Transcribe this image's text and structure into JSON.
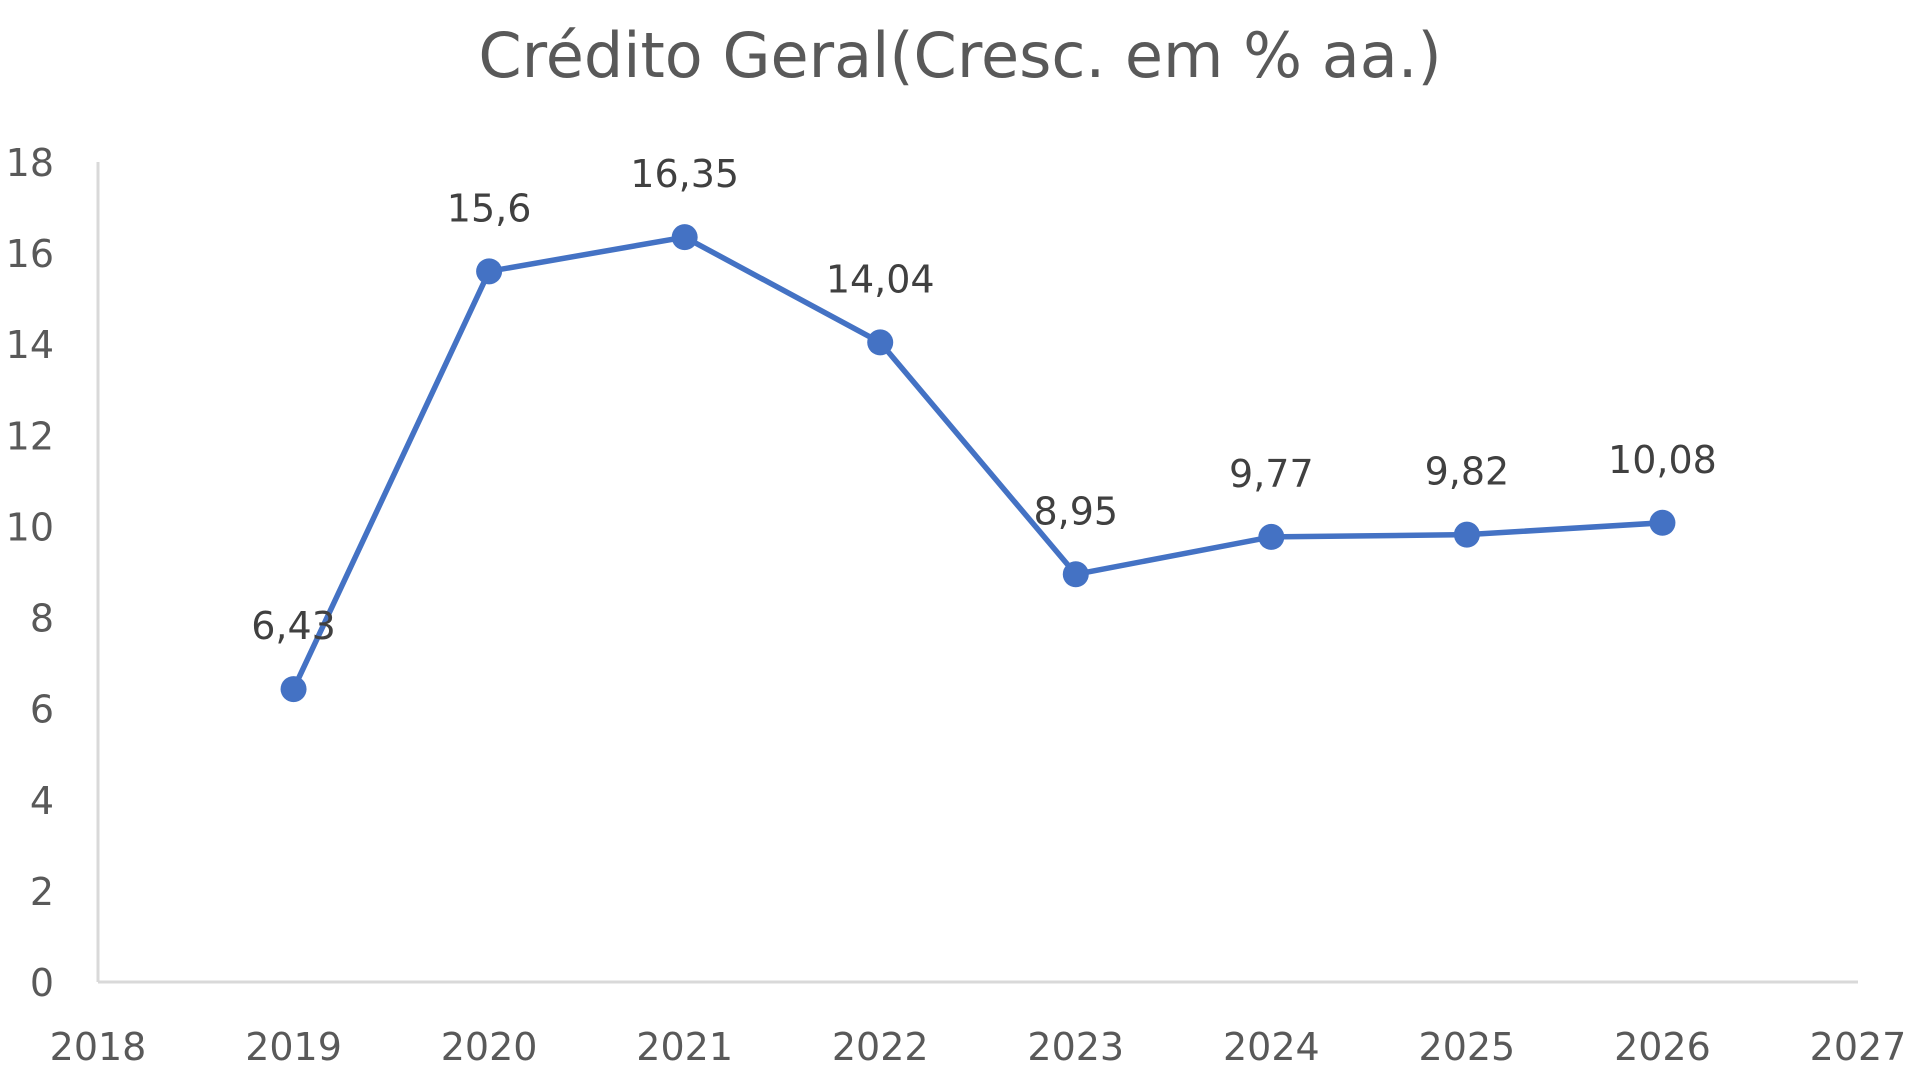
{
  "chart_data": {
    "type": "line",
    "title": "Crédito Geral(Cresc.  em % aa.)",
    "xlabel": "",
    "ylabel": "",
    "x": [
      2019,
      2020,
      2021,
      2022,
      2023,
      2024,
      2025,
      2026
    ],
    "series": [
      {
        "values": [
          6.43,
          15.6,
          16.35,
          14.04,
          8.95,
          9.77,
          9.82,
          10.08
        ],
        "data_labels": [
          "6,43",
          "15,6",
          "16,35",
          "14,04",
          "8,95",
          "9,77",
          "9,82",
          "10,08"
        ],
        "color": "#4472C4"
      }
    ],
    "xlim": [
      2018,
      2027
    ],
    "ylim": [
      0,
      18
    ],
    "x_ticks": [
      2018,
      2019,
      2020,
      2021,
      2022,
      2023,
      2024,
      2025,
      2026,
      2027
    ],
    "y_ticks": [
      0,
      2,
      4,
      6,
      8,
      10,
      12,
      14,
      16,
      18
    ],
    "grid": false,
    "legend": "none",
    "axis_color": "#d9d9d9"
  }
}
